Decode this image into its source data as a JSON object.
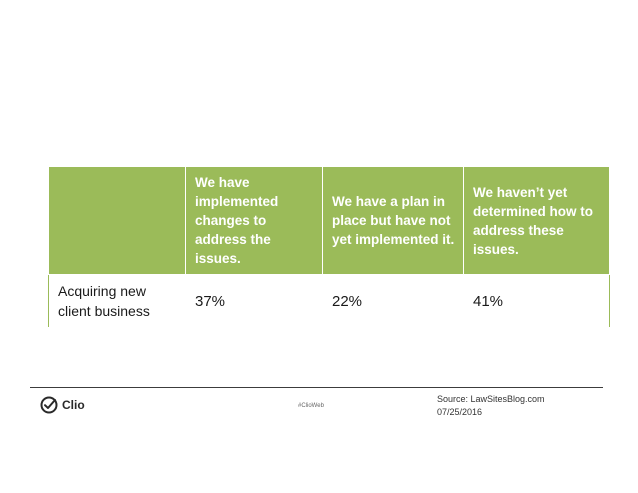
{
  "table": {
    "headers": [
      "",
      "We have implemented changes to address the issues.",
      "We have a plan in place but have not yet implemented it.",
      "We haven’t yet determined how to address these issues."
    ],
    "rows": [
      {
        "label": "Acquiring new client business",
        "values": [
          "37%",
          "22%",
          "41%"
        ]
      }
    ],
    "colors": {
      "header_bg": "#9bbb59",
      "header_text": "#ffffff",
      "border": "#9bbb59"
    }
  },
  "footer": {
    "logo_text": "Clio",
    "hashtag": "#ClioWeb",
    "source_line1": "Source: LawSitesBlog.com",
    "source_line2": "07/25/2016"
  }
}
